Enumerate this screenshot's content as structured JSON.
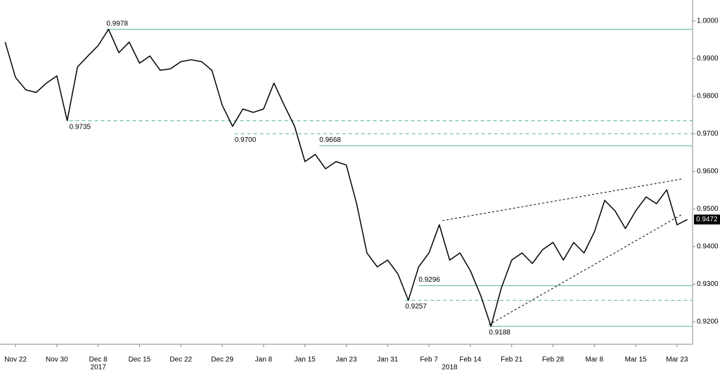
{
  "chart_data": {
    "type": "line",
    "categories": [
      null,
      "Nov 22",
      null,
      null,
      null,
      "Nov 30",
      null,
      null,
      null,
      "Dec 8",
      null,
      null,
      null,
      "Dec 15",
      null,
      null,
      null,
      "Dec 22",
      null,
      null,
      null,
      "Dec 29",
      null,
      null,
      null,
      "Jan 8",
      null,
      null,
      null,
      "Jan 15",
      null,
      null,
      null,
      "Jan 23",
      null,
      null,
      null,
      "Jan 31",
      null,
      null,
      null,
      "Feb 7",
      null,
      null,
      null,
      "Feb 14",
      null,
      null,
      null,
      "Feb 21",
      null,
      null,
      null,
      "Feb 28",
      null,
      null,
      null,
      "Mar 8",
      null,
      null,
      null,
      "Mar 15",
      null,
      null,
      null,
      "Mar 23",
      null
    ],
    "series": [
      {
        "color": "#000000",
        "values": [
          0.9944,
          0.985,
          0.9817,
          0.981,
          0.9835,
          0.9854,
          0.9735,
          0.9878,
          0.9907,
          0.9935,
          0.9978,
          0.9916,
          0.9944,
          0.9888,
          0.9907,
          0.9869,
          0.9873,
          0.9892,
          0.9897,
          0.9892,
          0.9869,
          0.9776,
          0.972,
          0.9766,
          0.9757,
          0.9766,
          0.9835,
          0.9776,
          0.972,
          0.9626,
          0.9645,
          0.9607,
          0.9626,
          0.9617,
          0.9514,
          0.9383,
          0.9346,
          0.9364,
          0.9327,
          0.9257,
          0.9346,
          0.9383,
          0.9458,
          0.9364,
          0.9383,
          0.9336,
          0.927,
          0.9188,
          0.929,
          0.9364,
          0.9383,
          0.9355,
          0.9392,
          0.9411,
          0.9364,
          0.9411,
          0.9383,
          0.9439,
          0.9523,
          0.9495,
          0.9448,
          0.9495,
          0.9532,
          0.9514,
          0.9551,
          0.9458,
          0.9472
        ]
      }
    ],
    "xlim": [
      -0.5,
      66.5
    ],
    "ylim": [
      0.914,
      1.0056
    ],
    "yticks": [
      {
        "value": 0.92,
        "label": "0.9200"
      },
      {
        "value": 0.93,
        "label": "0.9300"
      },
      {
        "value": 0.94,
        "label": "0.9400"
      },
      {
        "value": 0.95,
        "label": "0.9500"
      },
      {
        "value": 0.96,
        "label": "0.9600"
      },
      {
        "value": 0.97,
        "label": "0.9700"
      },
      {
        "value": 0.98,
        "label": "0.9800"
      },
      {
        "value": 0.99,
        "label": "0.9900"
      },
      {
        "value": 1.0,
        "label": "1.0000"
      }
    ],
    "level_color": "#6cbfa6",
    "levels": [
      {
        "value": 0.9978,
        "label": "0.9978",
        "x": 9.8,
        "style": "solid",
        "position": "above"
      },
      {
        "value": 0.9735,
        "label": "0.9735",
        "x": 6.2,
        "style": "dashed",
        "position": "below"
      },
      {
        "value": 0.97,
        "label": "0.9700",
        "x": 22.2,
        "style": "dashed",
        "position": "below"
      },
      {
        "value": 0.9668,
        "label": "0.9668",
        "x": 30.4,
        "style": "solid",
        "position": "above"
      },
      {
        "value": 0.9296,
        "label": "0.9296",
        "x": 40.0,
        "style": "solid",
        "position": "above"
      },
      {
        "value": 0.9257,
        "label": "0.9257",
        "x": 38.7,
        "style": "dashed",
        "position": "below"
      },
      {
        "value": 0.9188,
        "label": "0.9188",
        "x": 46.8,
        "style": "solid",
        "position": "below"
      }
    ],
    "trendlines": [
      {
        "x": [
          42.3,
          65.5
        ],
        "y": [
          0.9469,
          0.958
        ]
      },
      {
        "x": [
          46.8,
          65.5
        ],
        "y": [
          0.9192,
          0.9486
        ]
      }
    ],
    "last_price": 0.9472,
    "year_labels": [
      {
        "label": "2017",
        "x": 9
      },
      {
        "label": "2018",
        "x": 43
      }
    ]
  }
}
